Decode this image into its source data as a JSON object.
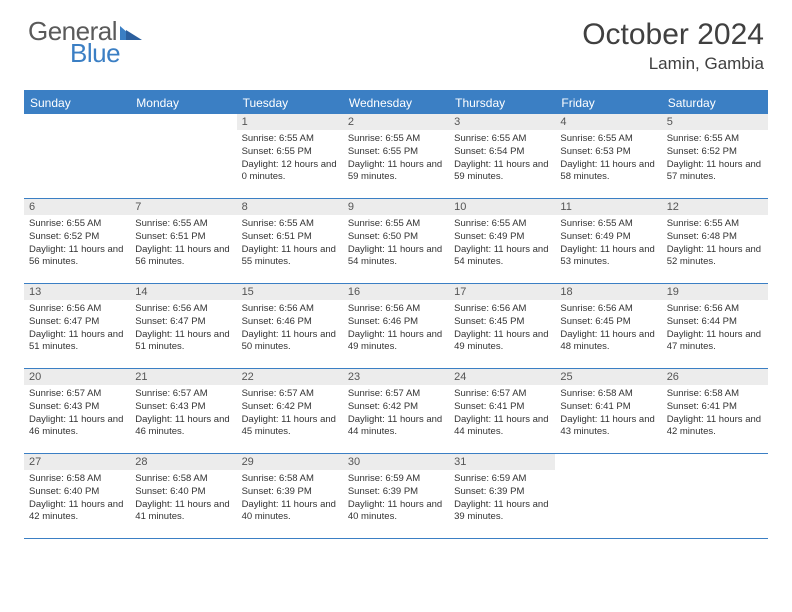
{
  "brand": {
    "part1": "General",
    "part2": "Blue"
  },
  "title": "October 2024",
  "location": "Lamin, Gambia",
  "colors": {
    "accent": "#3b7fc4",
    "header_text": "#404040",
    "daynum_bg": "#ececec",
    "text": "#333333"
  },
  "weekdays": [
    "Sunday",
    "Monday",
    "Tuesday",
    "Wednesday",
    "Thursday",
    "Friday",
    "Saturday"
  ],
  "weeks": [
    [
      {
        "n": "",
        "sunrise": "",
        "sunset": "",
        "daylight": ""
      },
      {
        "n": "",
        "sunrise": "",
        "sunset": "",
        "daylight": ""
      },
      {
        "n": "1",
        "sunrise": "Sunrise: 6:55 AM",
        "sunset": "Sunset: 6:55 PM",
        "daylight": "Daylight: 12 hours and 0 minutes."
      },
      {
        "n": "2",
        "sunrise": "Sunrise: 6:55 AM",
        "sunset": "Sunset: 6:55 PM",
        "daylight": "Daylight: 11 hours and 59 minutes."
      },
      {
        "n": "3",
        "sunrise": "Sunrise: 6:55 AM",
        "sunset": "Sunset: 6:54 PM",
        "daylight": "Daylight: 11 hours and 59 minutes."
      },
      {
        "n": "4",
        "sunrise": "Sunrise: 6:55 AM",
        "sunset": "Sunset: 6:53 PM",
        "daylight": "Daylight: 11 hours and 58 minutes."
      },
      {
        "n": "5",
        "sunrise": "Sunrise: 6:55 AM",
        "sunset": "Sunset: 6:52 PM",
        "daylight": "Daylight: 11 hours and 57 minutes."
      }
    ],
    [
      {
        "n": "6",
        "sunrise": "Sunrise: 6:55 AM",
        "sunset": "Sunset: 6:52 PM",
        "daylight": "Daylight: 11 hours and 56 minutes."
      },
      {
        "n": "7",
        "sunrise": "Sunrise: 6:55 AM",
        "sunset": "Sunset: 6:51 PM",
        "daylight": "Daylight: 11 hours and 56 minutes."
      },
      {
        "n": "8",
        "sunrise": "Sunrise: 6:55 AM",
        "sunset": "Sunset: 6:51 PM",
        "daylight": "Daylight: 11 hours and 55 minutes."
      },
      {
        "n": "9",
        "sunrise": "Sunrise: 6:55 AM",
        "sunset": "Sunset: 6:50 PM",
        "daylight": "Daylight: 11 hours and 54 minutes."
      },
      {
        "n": "10",
        "sunrise": "Sunrise: 6:55 AM",
        "sunset": "Sunset: 6:49 PM",
        "daylight": "Daylight: 11 hours and 54 minutes."
      },
      {
        "n": "11",
        "sunrise": "Sunrise: 6:55 AM",
        "sunset": "Sunset: 6:49 PM",
        "daylight": "Daylight: 11 hours and 53 minutes."
      },
      {
        "n": "12",
        "sunrise": "Sunrise: 6:55 AM",
        "sunset": "Sunset: 6:48 PM",
        "daylight": "Daylight: 11 hours and 52 minutes."
      }
    ],
    [
      {
        "n": "13",
        "sunrise": "Sunrise: 6:56 AM",
        "sunset": "Sunset: 6:47 PM",
        "daylight": "Daylight: 11 hours and 51 minutes."
      },
      {
        "n": "14",
        "sunrise": "Sunrise: 6:56 AM",
        "sunset": "Sunset: 6:47 PM",
        "daylight": "Daylight: 11 hours and 51 minutes."
      },
      {
        "n": "15",
        "sunrise": "Sunrise: 6:56 AM",
        "sunset": "Sunset: 6:46 PM",
        "daylight": "Daylight: 11 hours and 50 minutes."
      },
      {
        "n": "16",
        "sunrise": "Sunrise: 6:56 AM",
        "sunset": "Sunset: 6:46 PM",
        "daylight": "Daylight: 11 hours and 49 minutes."
      },
      {
        "n": "17",
        "sunrise": "Sunrise: 6:56 AM",
        "sunset": "Sunset: 6:45 PM",
        "daylight": "Daylight: 11 hours and 49 minutes."
      },
      {
        "n": "18",
        "sunrise": "Sunrise: 6:56 AM",
        "sunset": "Sunset: 6:45 PM",
        "daylight": "Daylight: 11 hours and 48 minutes."
      },
      {
        "n": "19",
        "sunrise": "Sunrise: 6:56 AM",
        "sunset": "Sunset: 6:44 PM",
        "daylight": "Daylight: 11 hours and 47 minutes."
      }
    ],
    [
      {
        "n": "20",
        "sunrise": "Sunrise: 6:57 AM",
        "sunset": "Sunset: 6:43 PM",
        "daylight": "Daylight: 11 hours and 46 minutes."
      },
      {
        "n": "21",
        "sunrise": "Sunrise: 6:57 AM",
        "sunset": "Sunset: 6:43 PM",
        "daylight": "Daylight: 11 hours and 46 minutes."
      },
      {
        "n": "22",
        "sunrise": "Sunrise: 6:57 AM",
        "sunset": "Sunset: 6:42 PM",
        "daylight": "Daylight: 11 hours and 45 minutes."
      },
      {
        "n": "23",
        "sunrise": "Sunrise: 6:57 AM",
        "sunset": "Sunset: 6:42 PM",
        "daylight": "Daylight: 11 hours and 44 minutes."
      },
      {
        "n": "24",
        "sunrise": "Sunrise: 6:57 AM",
        "sunset": "Sunset: 6:41 PM",
        "daylight": "Daylight: 11 hours and 44 minutes."
      },
      {
        "n": "25",
        "sunrise": "Sunrise: 6:58 AM",
        "sunset": "Sunset: 6:41 PM",
        "daylight": "Daylight: 11 hours and 43 minutes."
      },
      {
        "n": "26",
        "sunrise": "Sunrise: 6:58 AM",
        "sunset": "Sunset: 6:41 PM",
        "daylight": "Daylight: 11 hours and 42 minutes."
      }
    ],
    [
      {
        "n": "27",
        "sunrise": "Sunrise: 6:58 AM",
        "sunset": "Sunset: 6:40 PM",
        "daylight": "Daylight: 11 hours and 42 minutes."
      },
      {
        "n": "28",
        "sunrise": "Sunrise: 6:58 AM",
        "sunset": "Sunset: 6:40 PM",
        "daylight": "Daylight: 11 hours and 41 minutes."
      },
      {
        "n": "29",
        "sunrise": "Sunrise: 6:58 AM",
        "sunset": "Sunset: 6:39 PM",
        "daylight": "Daylight: 11 hours and 40 minutes."
      },
      {
        "n": "30",
        "sunrise": "Sunrise: 6:59 AM",
        "sunset": "Sunset: 6:39 PM",
        "daylight": "Daylight: 11 hours and 40 minutes."
      },
      {
        "n": "31",
        "sunrise": "Sunrise: 6:59 AM",
        "sunset": "Sunset: 6:39 PM",
        "daylight": "Daylight: 11 hours and 39 minutes."
      },
      {
        "n": "",
        "sunrise": "",
        "sunset": "",
        "daylight": ""
      },
      {
        "n": "",
        "sunrise": "",
        "sunset": "",
        "daylight": ""
      }
    ]
  ]
}
